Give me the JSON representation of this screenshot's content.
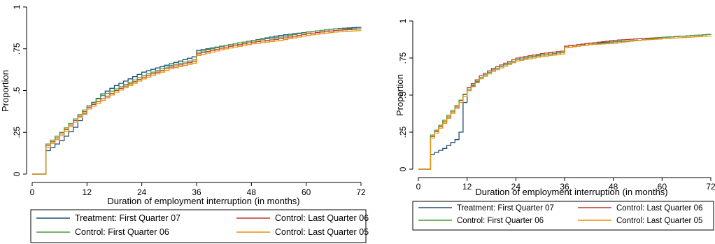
{
  "chart_data": [
    {
      "type": "line",
      "xlabel": "Duration of employment interruption (in months)",
      "ylabel": "Proportion",
      "xlim": [
        0,
        72
      ],
      "ylim": [
        0,
        1
      ],
      "xticks": [
        0,
        12,
        24,
        36,
        48,
        60,
        72
      ],
      "yticks": [
        0,
        0.25,
        0.5,
        0.75,
        1
      ],
      "ytick_labels": [
        "0",
        ".25",
        ".5",
        ".75",
        "1"
      ],
      "legend_position": "bottom",
      "series": [
        {
          "name": "Treatment: First Quarter 07",
          "color": "#1f4e79",
          "x": [
            0,
            3,
            3,
            6,
            9,
            12,
            15,
            18,
            24,
            30,
            36,
            36,
            42,
            48,
            54,
            60,
            66,
            72
          ],
          "y": [
            0,
            0,
            0.14,
            0.2,
            0.28,
            0.4,
            0.48,
            0.53,
            0.61,
            0.66,
            0.71,
            0.74,
            0.77,
            0.8,
            0.83,
            0.85,
            0.87,
            0.88
          ]
        },
        {
          "name": "Control: Last Quarter 06",
          "color": "#c0392b",
          "x": [
            0,
            3,
            3,
            6,
            9,
            12,
            15,
            18,
            24,
            30,
            36,
            36,
            42,
            48,
            54,
            60,
            66,
            72
          ],
          "y": [
            0,
            0,
            0.17,
            0.24,
            0.32,
            0.4,
            0.45,
            0.5,
            0.58,
            0.64,
            0.68,
            0.72,
            0.76,
            0.79,
            0.81,
            0.84,
            0.86,
            0.87
          ]
        },
        {
          "name": "Control: First Quarter 06",
          "color": "#4f9a3c",
          "x": [
            0,
            3,
            3,
            6,
            9,
            12,
            15,
            18,
            24,
            30,
            36,
            36,
            42,
            48,
            54,
            60,
            66,
            72
          ],
          "y": [
            0,
            0,
            0.18,
            0.25,
            0.33,
            0.41,
            0.47,
            0.51,
            0.59,
            0.65,
            0.69,
            0.73,
            0.77,
            0.8,
            0.82,
            0.85,
            0.87,
            0.87
          ]
        },
        {
          "name": "Control: Last Quarter 05",
          "color": "#e8910a",
          "x": [
            0,
            3,
            3,
            6,
            9,
            12,
            15,
            18,
            24,
            30,
            36,
            36,
            42,
            48,
            54,
            60,
            66,
            72
          ],
          "y": [
            0,
            0,
            0.16,
            0.23,
            0.31,
            0.39,
            0.44,
            0.49,
            0.57,
            0.63,
            0.67,
            0.71,
            0.75,
            0.78,
            0.8,
            0.83,
            0.85,
            0.86
          ]
        }
      ]
    },
    {
      "type": "line",
      "xlabel": "Duration of employment interruption (in months)",
      "ylabel": "Proportion",
      "xlim": [
        0,
        72
      ],
      "ylim": [
        0,
        1
      ],
      "xticks": [
        0,
        12,
        24,
        36,
        48,
        60,
        72
      ],
      "yticks": [
        0,
        0.25,
        0.5,
        0.75,
        1
      ],
      "ytick_labels": [
        "0",
        ".25",
        ".5",
        ".75",
        "1"
      ],
      "legend_position": "bottom",
      "series": [
        {
          "name": "Treatment: First Quarter 07",
          "color": "#1f4e79",
          "x": [
            0,
            3,
            3,
            6,
            9,
            11,
            11,
            12,
            15,
            18,
            24,
            30,
            36,
            36,
            42,
            48,
            54,
            60,
            66,
            72
          ],
          "y": [
            0,
            0,
            0.1,
            0.14,
            0.2,
            0.3,
            0.45,
            0.53,
            0.62,
            0.67,
            0.74,
            0.77,
            0.79,
            0.83,
            0.85,
            0.86,
            0.87,
            0.89,
            0.9,
            0.91
          ]
        },
        {
          "name": "Control: Last Quarter 06",
          "color": "#c0392b",
          "x": [
            0,
            3,
            3,
            6,
            9,
            12,
            15,
            18,
            24,
            30,
            36,
            36,
            42,
            48,
            54,
            60,
            66,
            72
          ],
          "y": [
            0,
            0,
            0.22,
            0.32,
            0.42,
            0.55,
            0.63,
            0.68,
            0.75,
            0.78,
            0.8,
            0.83,
            0.85,
            0.87,
            0.88,
            0.89,
            0.9,
            0.91
          ]
        },
        {
          "name": "Control: First Quarter 06",
          "color": "#4f9a3c",
          "x": [
            0,
            3,
            3,
            6,
            9,
            12,
            15,
            18,
            24,
            30,
            36,
            36,
            42,
            48,
            54,
            60,
            66,
            72
          ],
          "y": [
            0,
            0,
            0.23,
            0.33,
            0.43,
            0.54,
            0.62,
            0.67,
            0.74,
            0.77,
            0.79,
            0.82,
            0.84,
            0.86,
            0.87,
            0.89,
            0.9,
            0.91
          ]
        },
        {
          "name": "Control: Last Quarter 05",
          "color": "#e8910a",
          "x": [
            0,
            3,
            3,
            6,
            9,
            12,
            15,
            18,
            24,
            30,
            36,
            36,
            42,
            48,
            54,
            60,
            66,
            72
          ],
          "y": [
            0,
            0,
            0.21,
            0.31,
            0.41,
            0.53,
            0.61,
            0.66,
            0.73,
            0.76,
            0.78,
            0.82,
            0.84,
            0.85,
            0.87,
            0.88,
            0.89,
            0.9
          ]
        }
      ]
    }
  ]
}
